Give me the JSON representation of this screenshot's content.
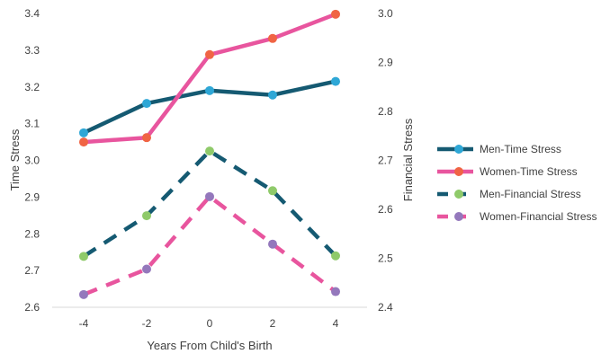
{
  "chart_data": {
    "type": "line",
    "title": "",
    "xlabel": "Years From Child's Birth",
    "ylabel_left": "Time Stress",
    "ylabel_right": "Financial Stress",
    "x": [
      -4,
      -2,
      0,
      2,
      4
    ],
    "x_tick_labels": [
      "-4",
      "-2",
      "0",
      "2",
      "4"
    ],
    "xlim": [
      -5,
      5
    ],
    "ylim_left": [
      2.6,
      3.4
    ],
    "ylim_right": [
      2.4,
      3.0
    ],
    "left_ticks": [
      "2.6",
      "2.7",
      "2.8",
      "2.9",
      "3.0",
      "3.1",
      "3.2",
      "3.3",
      "3.4"
    ],
    "right_ticks": [
      "2.4",
      "2.5",
      "2.6",
      "2.7",
      "2.8",
      "2.9",
      "3.0"
    ],
    "grid": false,
    "legend_position": "right",
    "series": [
      {
        "name": "Men-Time Stress",
        "axis": "left",
        "style": "solid",
        "line_color": "#155a72",
        "marker_color": "#2ea7d6",
        "values": [
          3.075,
          3.155,
          3.19,
          3.178,
          3.215
        ]
      },
      {
        "name": "Women-Time Stress",
        "axis": "left",
        "style": "solid",
        "line_color": "#e8559e",
        "marker_color": "#f06444",
        "values": [
          3.05,
          3.062,
          3.288,
          3.332,
          3.398
        ]
      },
      {
        "name": "Men-Financial Stress",
        "axis": "right",
        "style": "dashed",
        "line_color": "#155a72",
        "marker_color": "#8fca6a",
        "values": [
          2.504,
          2.587,
          2.719,
          2.638,
          2.505
        ]
      },
      {
        "name": "Women-Financial Stress",
        "axis": "right",
        "style": "dashed",
        "line_color": "#e8559e",
        "marker_color": "#9478bc",
        "values": [
          2.426,
          2.478,
          2.626,
          2.529,
          2.432
        ]
      }
    ]
  }
}
